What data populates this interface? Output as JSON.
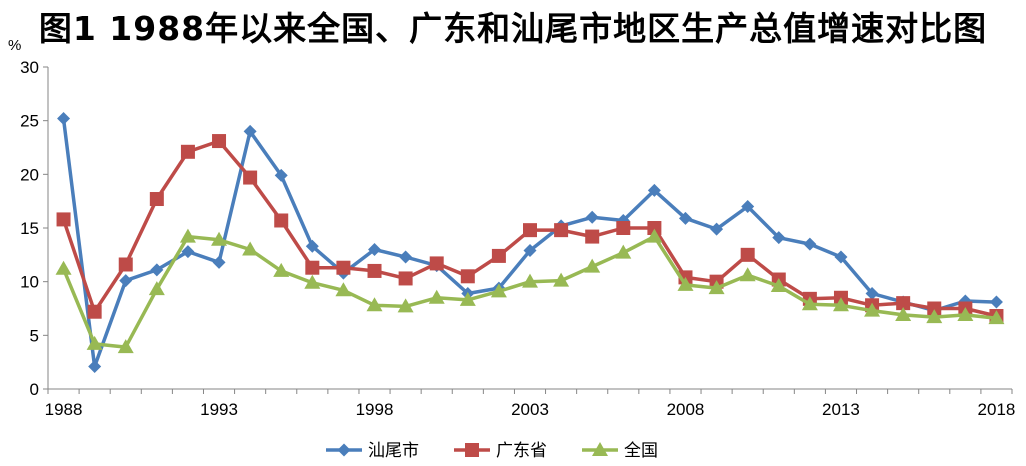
{
  "chart_data": {
    "type": "line",
    "title": "图1  1988年以来全国、广东和汕尾市地区生产总值增速对比图",
    "ylabel": "%",
    "xlabel": "",
    "ylim": [
      0,
      30
    ],
    "yticks": [
      0,
      5,
      10,
      15,
      20,
      25,
      30
    ],
    "xlim": [
      1988,
      2018
    ],
    "xticks": [
      1988,
      1993,
      1998,
      2003,
      2008,
      2013,
      2018
    ],
    "grid": false,
    "legend_position": "bottom",
    "x": [
      1988,
      1989,
      1990,
      1991,
      1992,
      1993,
      1994,
      1995,
      1996,
      1997,
      1998,
      1999,
      2000,
      2001,
      2002,
      2003,
      2004,
      2005,
      2006,
      2007,
      2008,
      2009,
      2010,
      2011,
      2012,
      2013,
      2014,
      2015,
      2016,
      2017,
      2018
    ],
    "series": [
      {
        "name": "汕尾市",
        "color": "#4a7ebb",
        "marker": "diamond",
        "values": [
          25.2,
          2.1,
          10.1,
          11.1,
          12.8,
          11.8,
          24.0,
          19.9,
          13.3,
          10.8,
          13.0,
          12.3,
          11.5,
          8.9,
          9.4,
          12.9,
          15.2,
          16.0,
          15.7,
          18.5,
          15.9,
          14.9,
          17.0,
          14.1,
          13.5,
          12.3,
          8.9,
          8.1,
          7.3,
          8.2,
          8.1
        ]
      },
      {
        "name": "广东省",
        "color": "#be4b48",
        "marker": "square",
        "values": [
          15.8,
          7.2,
          11.6,
          17.7,
          22.1,
          23.1,
          19.7,
          15.7,
          11.3,
          11.3,
          11.0,
          10.3,
          11.7,
          10.5,
          12.4,
          14.8,
          14.8,
          14.2,
          15.0,
          15.0,
          10.4,
          10.0,
          12.5,
          10.2,
          8.4,
          8.5,
          7.8,
          8.0,
          7.5,
          7.5,
          6.8
        ]
      },
      {
        "name": "全国",
        "color": "#98b954",
        "marker": "triangle",
        "values": [
          11.2,
          4.2,
          3.9,
          9.3,
          14.2,
          13.9,
          13.0,
          11.0,
          9.9,
          9.2,
          7.8,
          7.7,
          8.5,
          8.3,
          9.1,
          10.0,
          10.1,
          11.4,
          12.7,
          14.2,
          9.7,
          9.4,
          10.6,
          9.6,
          7.9,
          7.8,
          7.3,
          6.9,
          6.7,
          6.9,
          6.6
        ]
      }
    ]
  }
}
